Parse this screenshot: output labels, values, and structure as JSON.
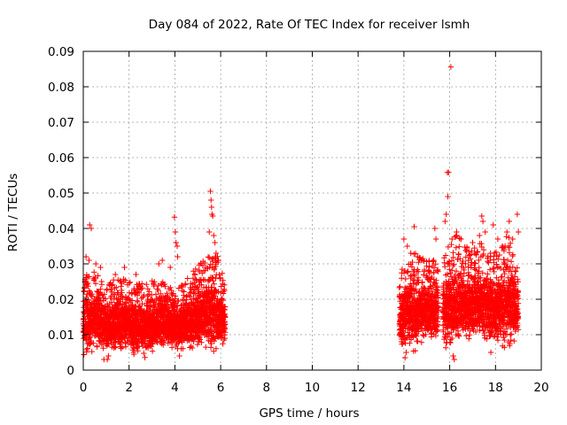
{
  "chart_data": {
    "type": "scatter",
    "title": "Day 084 of 2022, Rate Of TEC Index for receiver lsmh",
    "xlabel": "GPS time / hours",
    "ylabel": "ROTI / TECUs",
    "xlim": [
      0,
      20
    ],
    "ylim": [
      0,
      0.09
    ],
    "x_ticks": [
      "0",
      "2",
      "4",
      "6",
      "8",
      "10",
      "12",
      "14",
      "16",
      "18",
      "20"
    ],
    "y_ticks": [
      "0",
      "0.01",
      "0.02",
      "0.03",
      "0.04",
      "0.05",
      "0.06",
      "0.07",
      "0.08",
      "0.09"
    ],
    "grid": true,
    "marker": "+",
    "color": "#ff0000",
    "series": [
      {
        "name": "ROTI",
        "segments": [
          {
            "x_range": [
              0.0,
              6.2
            ],
            "base_profile": [
              [
                0.0,
                0.012
              ],
              [
                0.5,
                0.014
              ],
              [
                1.0,
                0.011
              ],
              [
                1.5,
                0.013
              ],
              [
                2.0,
                0.012
              ],
              [
                2.5,
                0.011
              ],
              [
                3.0,
                0.012
              ],
              [
                3.5,
                0.013
              ],
              [
                4.0,
                0.011
              ],
              [
                4.5,
                0.013
              ],
              [
                5.0,
                0.014
              ],
              [
                5.5,
                0.016
              ],
              [
                6.2,
                0.013
              ]
            ],
            "spread_profile": [
              [
                0.0,
                0.008
              ],
              [
                1.0,
                0.007
              ],
              [
                2.0,
                0.007
              ],
              [
                3.0,
                0.007
              ],
              [
                4.0,
                0.006
              ],
              [
                5.0,
                0.008
              ],
              [
                5.8,
                0.01
              ],
              [
                6.2,
                0.006
              ]
            ]
          },
          {
            "x_range": [
              13.8,
              15.5
            ],
            "base_profile": [
              [
                13.8,
                0.013
              ],
              [
                14.2,
                0.016
              ],
              [
                14.6,
                0.015
              ],
              [
                15.0,
                0.016
              ],
              [
                15.5,
                0.017
              ]
            ],
            "spread_profile": [
              [
                13.8,
                0.007
              ],
              [
                14.3,
                0.01
              ],
              [
                15.0,
                0.008
              ],
              [
                15.5,
                0.008
              ]
            ]
          },
          {
            "x_range": [
              15.7,
              19.0
            ],
            "base_profile": [
              [
                15.7,
                0.016
              ],
              [
                16.0,
                0.017
              ],
              [
                16.5,
                0.018
              ],
              [
                17.0,
                0.017
              ],
              [
                17.5,
                0.018
              ],
              [
                18.0,
                0.016
              ],
              [
                18.5,
                0.018
              ],
              [
                19.0,
                0.017
              ]
            ],
            "spread_profile": [
              [
                15.7,
                0.009
              ],
              [
                16.2,
                0.011
              ],
              [
                17.0,
                0.009
              ],
              [
                17.5,
                0.01
              ],
              [
                18.0,
                0.009
              ],
              [
                18.6,
                0.011
              ],
              [
                19.0,
                0.008
              ]
            ]
          }
        ],
        "notable_points": [
          [
            0.28,
            0.041
          ],
          [
            0.35,
            0.04
          ],
          [
            0.12,
            0.032
          ],
          [
            0.25,
            0.031
          ],
          [
            0.55,
            0.03
          ],
          [
            0.75,
            0.029
          ],
          [
            1.4,
            0.027
          ],
          [
            1.8,
            0.029
          ],
          [
            2.3,
            0.027
          ],
          [
            3.3,
            0.03
          ],
          [
            3.45,
            0.031
          ],
          [
            3.8,
            0.029
          ],
          [
            3.98,
            0.0432
          ],
          [
            4.02,
            0.039
          ],
          [
            4.05,
            0.036
          ],
          [
            4.1,
            0.035
          ],
          [
            4.12,
            0.032
          ],
          [
            5.55,
            0.0505
          ],
          [
            5.58,
            0.048
          ],
          [
            5.6,
            0.046
          ],
          [
            5.62,
            0.044
          ],
          [
            5.65,
            0.0435
          ],
          [
            5.5,
            0.039
          ],
          [
            5.7,
            0.038
          ],
          [
            5.75,
            0.036
          ],
          [
            5.8,
            0.033
          ],
          [
            5.9,
            0.031
          ],
          [
            14.0,
            0.037
          ],
          [
            14.15,
            0.035
          ],
          [
            14.3,
            0.033
          ],
          [
            14.45,
            0.0405
          ],
          [
            14.6,
            0.032
          ],
          [
            15.3,
            0.031
          ],
          [
            15.35,
            0.04
          ],
          [
            15.4,
            0.037
          ],
          [
            15.85,
            0.044
          ],
          [
            15.8,
            0.042
          ],
          [
            15.9,
            0.0558
          ],
          [
            15.95,
            0.0558
          ],
          [
            15.92,
            0.049
          ],
          [
            16.05,
            0.0856
          ],
          [
            16.1,
            0.037
          ],
          [
            16.3,
            0.039
          ],
          [
            16.5,
            0.037
          ],
          [
            17.0,
            0.036
          ],
          [
            17.3,
            0.038
          ],
          [
            17.4,
            0.0435
          ],
          [
            17.45,
            0.042
          ],
          [
            17.55,
            0.039
          ],
          [
            17.9,
            0.041
          ],
          [
            18.1,
            0.037
          ],
          [
            18.3,
            0.035
          ],
          [
            18.5,
            0.039
          ],
          [
            18.6,
            0.042
          ],
          [
            18.75,
            0.037
          ],
          [
            18.95,
            0.044
          ],
          [
            19.0,
            0.039
          ]
        ],
        "low_points": [
          [
            0.9,
            0.003
          ],
          [
            1.05,
            0.003
          ],
          [
            1.1,
            0.004
          ],
          [
            2.2,
            0.005
          ],
          [
            4.2,
            0.004
          ],
          [
            14.05,
            0.0035
          ],
          [
            14.1,
            0.005
          ],
          [
            16.15,
            0.004
          ],
          [
            16.2,
            0.003
          ],
          [
            17.8,
            0.005
          ]
        ]
      }
    ]
  }
}
